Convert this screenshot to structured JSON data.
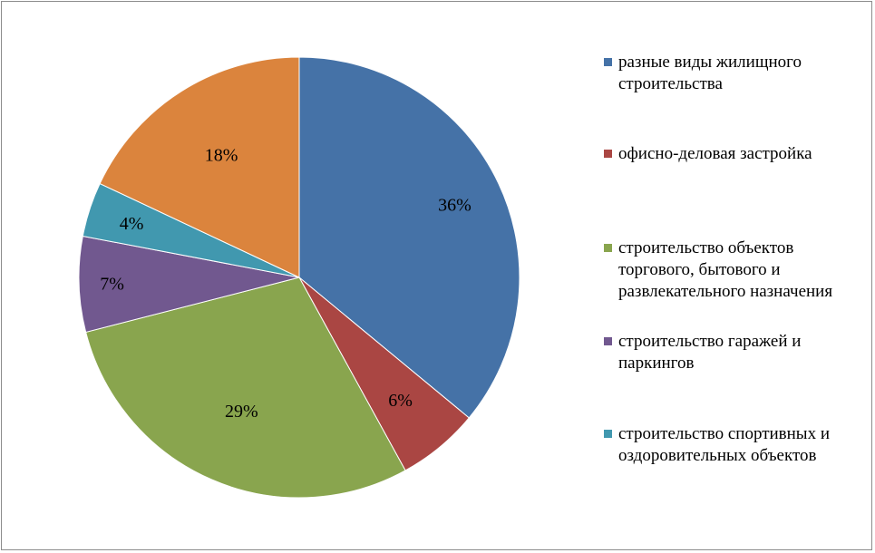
{
  "chart_data": {
    "type": "pie",
    "slices": [
      {
        "label": "разные виды жилищного строительства",
        "value": 36,
        "display": "36%",
        "color": "#4572A7"
      },
      {
        "label": "офисно-деловая застройка",
        "value": 6,
        "display": "6%",
        "color": "#AA4643"
      },
      {
        "label": "строительство объектов торгового, бытового и развлекательного назначения",
        "value": 29,
        "display": "29%",
        "color": "#89A54E"
      },
      {
        "label": "строительство гаражей и паркингов",
        "value": 7,
        "display": "7%",
        "color": "#71588F"
      },
      {
        "label": "строительство спортивных и оздоровительных объектов",
        "value": 4,
        "display": "4%",
        "color": "#4198AF"
      },
      {
        "label": "",
        "value": 18,
        "display": "18%",
        "color": "#DB843D"
      }
    ],
    "legend_position": "right"
  }
}
